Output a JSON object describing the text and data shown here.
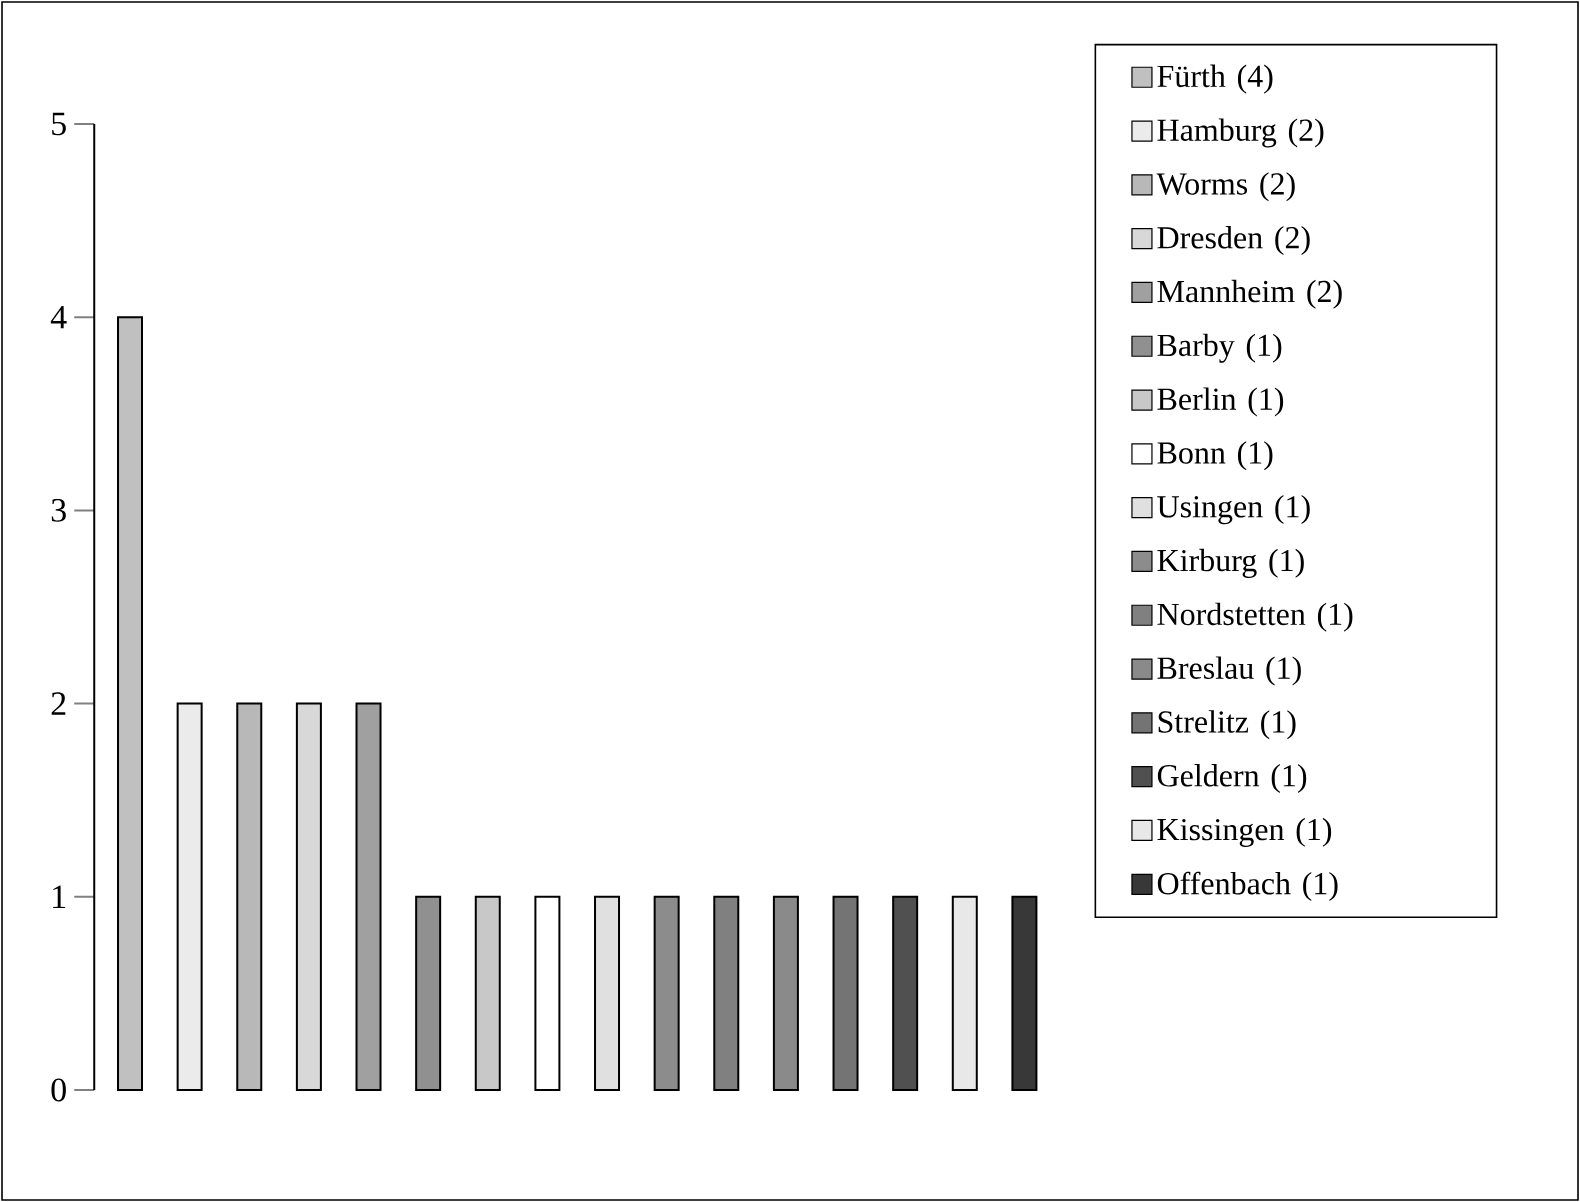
{
  "chart_data": {
    "type": "bar",
    "legend": "right",
    "stacked": true,
    "categories": [
      null,
      null,
      null,
      null,
      null,
      null,
      null,
      null,
      null,
      null,
      null,
      null,
      null,
      null,
      null,
      null
    ],
    "ylim": [
      0,
      5
    ],
    "yticks": [
      0,
      1,
      2,
      3,
      4,
      5
    ],
    "series": [
      {
        "name": "Fürth (4)",
        "color": "#c0c0c0",
        "values": [
          4,
          null,
          null,
          null,
          null,
          null,
          null,
          null,
          null,
          null,
          null,
          null,
          null,
          null,
          null,
          null
        ]
      },
      {
        "name": "Hamburg (2)",
        "color": "#ebebeb",
        "values": [
          null,
          2,
          null,
          null,
          null,
          null,
          null,
          null,
          null,
          null,
          null,
          null,
          null,
          null,
          null,
          null
        ]
      },
      {
        "name": "Worms (2)",
        "color": "#b8b8b8",
        "values": [
          null,
          null,
          2,
          null,
          null,
          null,
          null,
          null,
          null,
          null,
          null,
          null,
          null,
          null,
          null,
          null
        ]
      },
      {
        "name": "Dresden (2)",
        "color": "#d8d8d8",
        "values": [
          null,
          null,
          null,
          2,
          null,
          null,
          null,
          null,
          null,
          null,
          null,
          null,
          null,
          null,
          null,
          null
        ]
      },
      {
        "name": "Mannheim (2)",
        "color": "#a0a0a0",
        "values": [
          null,
          null,
          null,
          null,
          2,
          null,
          null,
          null,
          null,
          null,
          null,
          null,
          null,
          null,
          null,
          null
        ]
      },
      {
        "name": "Barby (1)",
        "color": "#909090",
        "values": [
          null,
          null,
          null,
          null,
          null,
          1,
          null,
          null,
          null,
          null,
          null,
          null,
          null,
          null,
          null,
          null
        ]
      },
      {
        "name": "Berlin (1)",
        "color": "#c8c8c8",
        "values": [
          null,
          null,
          null,
          null,
          null,
          null,
          1,
          null,
          null,
          null,
          null,
          null,
          null,
          null,
          null,
          null
        ]
      },
      {
        "name": "Bonn (1)",
        "color": "#ffffff",
        "values": [
          null,
          null,
          null,
          null,
          null,
          null,
          null,
          1,
          null,
          null,
          null,
          null,
          null,
          null,
          null,
          null
        ]
      },
      {
        "name": "Usingen (1)",
        "color": "#e0e0e0",
        "values": [
          null,
          null,
          null,
          null,
          null,
          null,
          null,
          null,
          1,
          null,
          null,
          null,
          null,
          null,
          null,
          null
        ]
      },
      {
        "name": "Kirburg (1)",
        "color": "#8c8c8c",
        "values": [
          null,
          null,
          null,
          null,
          null,
          null,
          null,
          null,
          null,
          1,
          null,
          null,
          null,
          null,
          null,
          null
        ]
      },
      {
        "name": "Nordstetten (1)",
        "color": "#808080",
        "values": [
          null,
          null,
          null,
          null,
          null,
          null,
          null,
          null,
          null,
          null,
          1,
          null,
          null,
          null,
          null,
          null
        ]
      },
      {
        "name": "Breslau (1)",
        "color": "#8a8a8a",
        "values": [
          null,
          null,
          null,
          null,
          null,
          null,
          null,
          null,
          null,
          null,
          null,
          1,
          null,
          null,
          null,
          null
        ]
      },
      {
        "name": "Strelitz (1)",
        "color": "#747474",
        "values": [
          null,
          null,
          null,
          null,
          null,
          null,
          null,
          null,
          null,
          null,
          null,
          null,
          1,
          null,
          null,
          null
        ]
      },
      {
        "name": "Geldern (1)",
        "color": "#505050",
        "values": [
          null,
          null,
          null,
          null,
          null,
          null,
          null,
          null,
          null,
          null,
          null,
          null,
          null,
          1,
          null,
          null
        ]
      },
      {
        "name": "Kissingen (1)",
        "color": "#e8e8e8",
        "values": [
          null,
          null,
          null,
          null,
          null,
          null,
          null,
          null,
          null,
          null,
          null,
          null,
          null,
          null,
          1,
          null
        ]
      },
      {
        "name": "Offenbach (1)",
        "color": "#383838",
        "values": [
          null,
          null,
          null,
          null,
          null,
          null,
          null,
          null,
          null,
          null,
          null,
          null,
          null,
          null,
          null,
          1
        ]
      }
    ]
  }
}
